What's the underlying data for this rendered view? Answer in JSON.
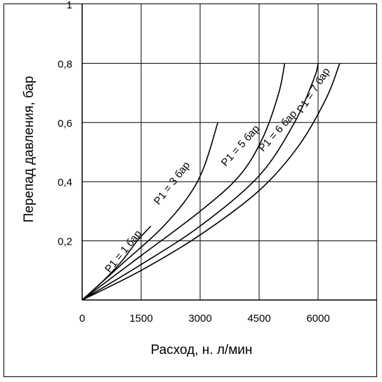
{
  "chart_data": {
    "type": "line",
    "xlabel": "Расход, н. л/мин",
    "ylabel": "Перепад давления, бар",
    "xlim": [
      0,
      7500
    ],
    "ylim": [
      0,
      1
    ],
    "x_ticks": [
      "0",
      "1500",
      "3000",
      "4500",
      "6000"
    ],
    "y_ticks": [
      "0,2",
      "0,4",
      "0,6",
      "0,8",
      "1"
    ],
    "grid": true,
    "series": [
      {
        "name": "P1 = 1 бар",
        "x": [
          0,
          500,
          1000,
          1400,
          1750
        ],
        "y": [
          0,
          0.06,
          0.13,
          0.2,
          0.25
        ]
      },
      {
        "name": "P1 = 3 бар",
        "x": [
          0,
          1000,
          2000,
          2700,
          3100,
          3450
        ],
        "y": [
          0,
          0.12,
          0.24,
          0.35,
          0.45,
          0.6
        ]
      },
      {
        "name": "P1 = 5 бар",
        "x": [
          0,
          1500,
          3000,
          4000,
          4600,
          5000,
          5150
        ],
        "y": [
          0,
          0.15,
          0.3,
          0.42,
          0.55,
          0.7,
          0.8
        ]
      },
      {
        "name": "P1 = 6 бар",
        "x": [
          0,
          1500,
          3000,
          4500,
          5400,
          5900,
          6000
        ],
        "y": [
          0,
          0.12,
          0.25,
          0.42,
          0.6,
          0.75,
          0.8
        ]
      },
      {
        "name": "P1 = 7 бар",
        "x": [
          0,
          1500,
          3000,
          4500,
          5500,
          6200,
          6550
        ],
        "y": [
          0,
          0.1,
          0.22,
          0.37,
          0.52,
          0.68,
          0.8
        ]
      }
    ]
  }
}
